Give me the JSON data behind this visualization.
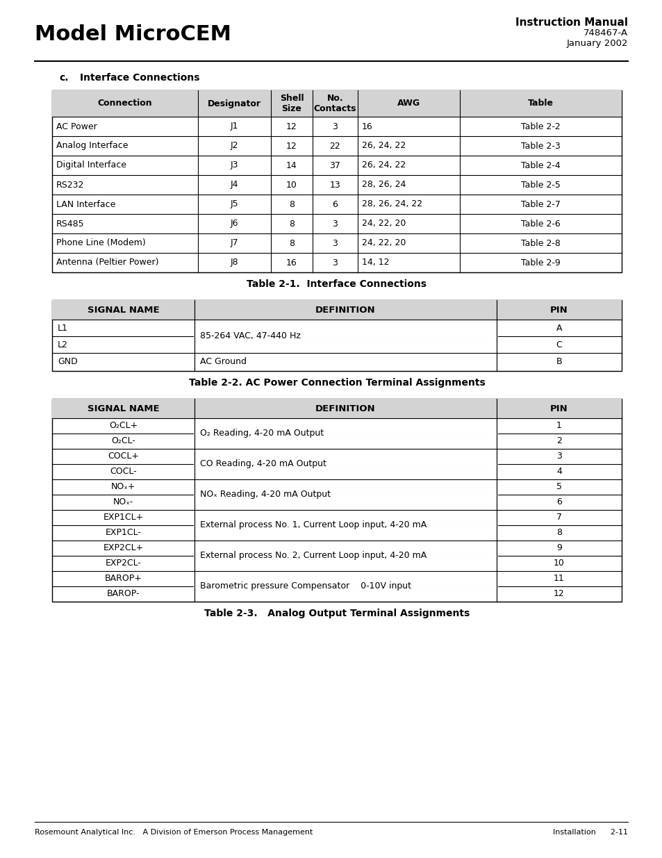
{
  "page_title_left": "Model MicroCEM",
  "page_title_right_line1": "Instruction Manual",
  "page_title_right_line2": "748467-A",
  "page_title_right_line3": "January 2002",
  "section_label": "c.",
  "section_title": "Interface Connections",
  "table1_caption": "Table 2-1.  Interface Connections",
  "table1_headers": [
    "Connection",
    "Designator",
    "Shell\nSize",
    "No.\nContacts",
    "AWG",
    "Table"
  ],
  "table1_rows": [
    [
      "AC Power",
      "J1",
      "12",
      "3",
      "16",
      "Table 2-2"
    ],
    [
      "Analog Interface",
      "J2",
      "12",
      "22",
      "26, 24, 22",
      "Table 2-3"
    ],
    [
      "Digital Interface",
      "J3",
      "14",
      "37",
      "26, 24, 22",
      "Table 2-4"
    ],
    [
      "RS232",
      "J4",
      "10",
      "13",
      "28, 26, 24",
      "Table 2-5"
    ],
    [
      "LAN Interface",
      "J5",
      "8",
      "6",
      "28, 26, 24, 22",
      "Table 2-7"
    ],
    [
      "RS485",
      "J6",
      "8",
      "3",
      "24, 22, 20",
      "Table 2-6"
    ],
    [
      "Phone Line (Modem)",
      "J7",
      "8",
      "3",
      "24, 22, 20",
      "Table 2-8"
    ],
    [
      "Antenna (Peltier Power)",
      "J8",
      "16",
      "3",
      "14, 12",
      "Table 2-9"
    ]
  ],
  "table2_caption": "Table 2-2. AC Power Connection Terminal Assignments",
  "table2_headers": [
    "SIGNAL NAME",
    "DEFINITION",
    "PIN"
  ],
  "table2_rows": [
    [
      "L1",
      "85-264 VAC, 47-440 Hz",
      "A"
    ],
    [
      "L2",
      "",
      "C"
    ],
    [
      "GND",
      "AC Ground",
      "B"
    ]
  ],
  "table3_caption": "Table 2-3.   Analog Output Terminal Assignments",
  "table3_headers": [
    "SIGNAL NAME",
    "DEFINITION",
    "PIN"
  ],
  "table3_rows": [
    [
      "O₂CL+",
      "O₂ Reading, 4-20 mA Output",
      "1"
    ],
    [
      "O₂CL-",
      "",
      "2"
    ],
    [
      "COCL+",
      "CO Reading, 4-20 mA Output",
      "3"
    ],
    [
      "COCL-",
      "",
      "4"
    ],
    [
      "NOₓ+",
      "NOₓ Reading, 4-20 mA Output",
      "5"
    ],
    [
      "NOₓ-",
      "",
      "6"
    ],
    [
      "EXP1CL+",
      "External process No. 1, Current Loop input, 4-20 mA",
      "7"
    ],
    [
      "EXP1CL-",
      "",
      "8"
    ],
    [
      "EXP2CL+",
      "External process No. 2, Current Loop input, 4-20 mA",
      "9"
    ],
    [
      "EXP2CL-",
      "",
      "10"
    ],
    [
      "BAROP+",
      "Barometric pressure Compensator    0-10V input",
      "11"
    ],
    [
      "BAROP-",
      "",
      "12"
    ]
  ],
  "table3_merged_pairs": [
    [
      0,
      1
    ],
    [
      2,
      3
    ],
    [
      4,
      5
    ],
    [
      6,
      7
    ],
    [
      8,
      9
    ],
    [
      10,
      11
    ]
  ],
  "footer_left": "Rosemount Analytical Inc.   A Division of Emerson Process Management",
  "footer_right": "Installation      2-11",
  "bg_color": "#ffffff",
  "text_color": "#000000",
  "header_bg": "#d3d3d3"
}
